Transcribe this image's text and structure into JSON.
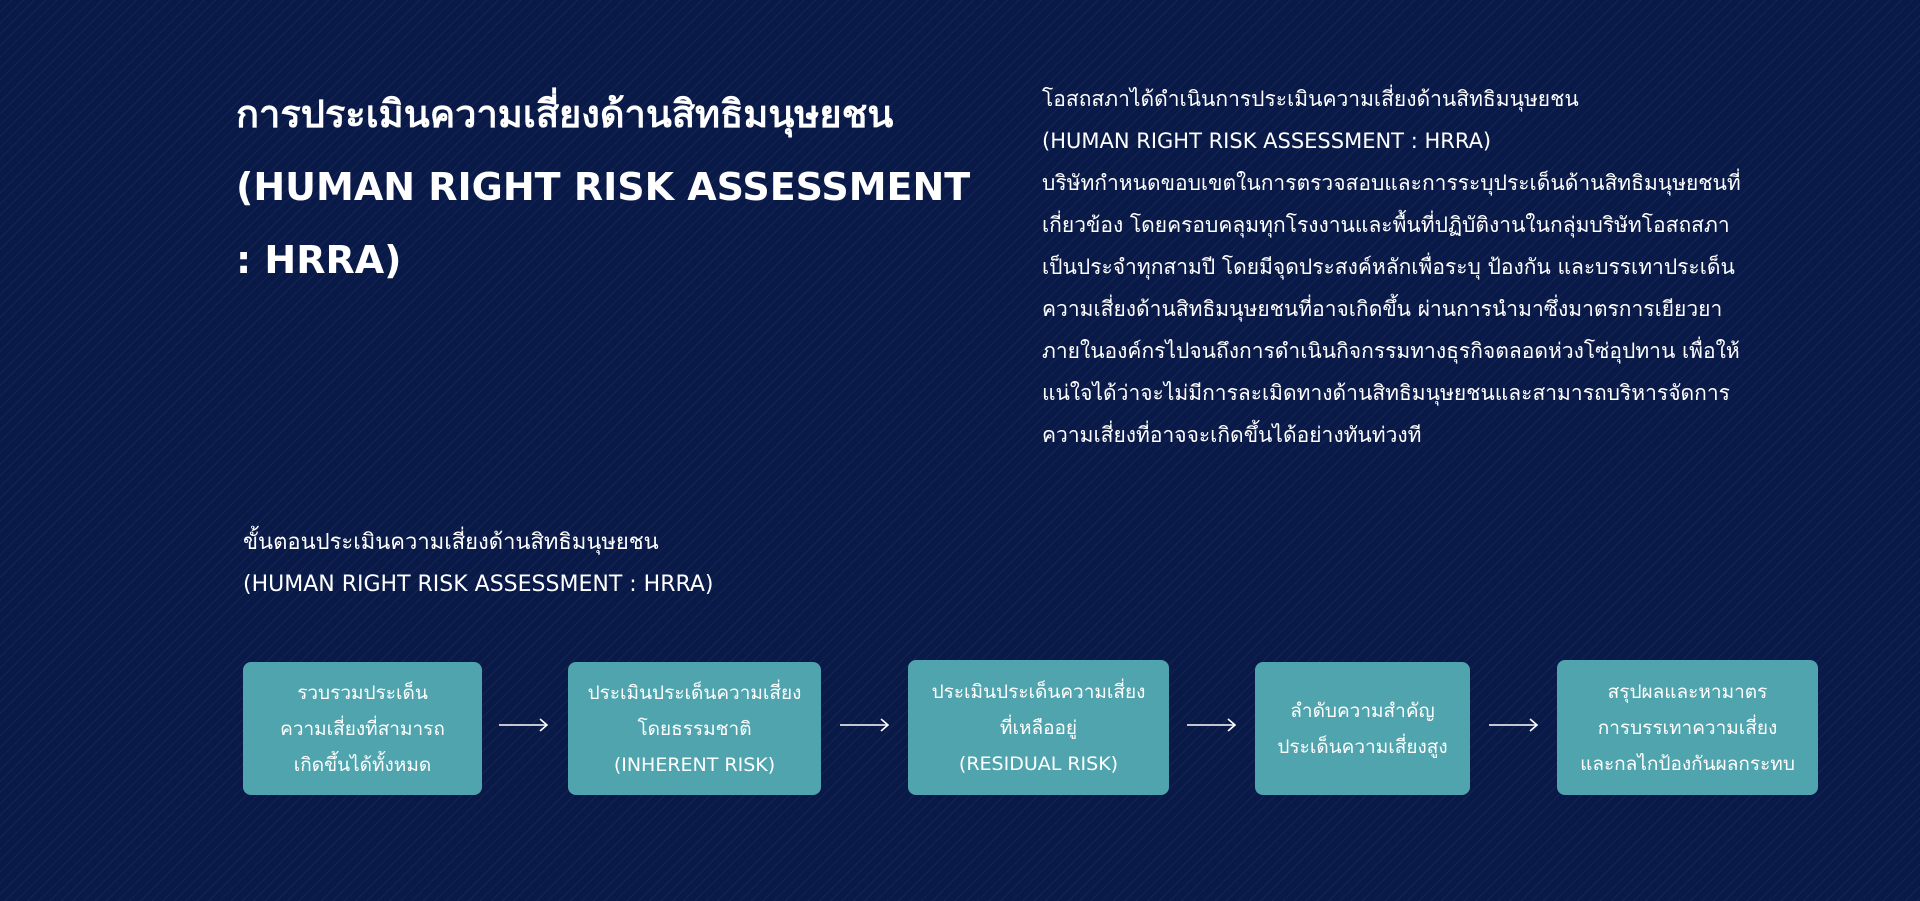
{
  "title": {
    "lines": [
      "การประเมินความเสี่ยงด้านสิทธิมนุษยชน",
      "(HUMAN RIGHT RISK ASSESSMENT",
      ": HRRA)"
    ]
  },
  "intro": {
    "lines": [
      "โอสถสภาได้ดำเนินการประเมินความเสี่ยงด้านสิทธิมนุษยชน",
      "(HUMAN RIGHT RISK ASSESSMENT : HRRA)",
      "บริษัทกำหนดขอบเขตในการตรวจสอบและการระบุประเด็นด้านสิทธิมนุษยชนที่",
      "เกี่ยวข้อง โดยครอบคลุมทุกโรงงานและพื้นที่ปฏิบัติงานในกลุ่มบริษัทโอสถสภา",
      "เป็นประจำทุกสามปี โดยมีจุดประสงค์หลักเพื่อระบุ ป้องกัน และบรรเทาประเด็น",
      "ความเสี่ยงด้านสิทธิมนุษยชนที่อาจเกิดขึ้น ผ่านการนำมาซึ่งมาตรการเยียวยา",
      "ภายในองค์กรไปจนถึงการดำเนินกิจกรรมทางธุรกิจตลอดห่วงโซ่อุปทาน เพื่อให้",
      "แน่ใจได้ว่าจะไม่มีการละเมิดทางด้านสิทธิมนุษยชนและสามารถบริหารจัดการ",
      "ความเสี่ยงที่อาจจะเกิดขึ้นได้อย่างทันท่วงที"
    ]
  },
  "process": {
    "heading": [
      "ขั้นตอนประเมินความเสี่ยงด้านสิทธิมนุษยชน",
      "(HUMAN RIGHT RISK ASSESSMENT : HRRA)"
    ],
    "steps": [
      {
        "lines": [
          "รวบรวมประเด็น",
          "ความเสี่ยงที่สามารถ",
          "เกิดขึ้นได้ทั้งหมด"
        ]
      },
      {
        "lines": [
          "ประเมินประเด็นความเสี่ยง",
          "โดยธรรมชาติ",
          "(INHERENT RISK)"
        ]
      },
      {
        "lines": [
          "ประเมินประเด็นความเสี่ยง",
          "ที่เหลืออยู่",
          "(RESIDUAL RISK)"
        ]
      },
      {
        "lines": [
          "ลำดับความสำคัญ",
          "ประเด็นความเสี่ยงสูง"
        ]
      },
      {
        "lines": [
          "สรุปผลและหามาตร",
          "การบรรเทาความเสี่ยง",
          "และกลไกป้องกันผลกระทบ"
        ]
      }
    ],
    "arrow_icon": "long-right-arrow-icon"
  },
  "colors": {
    "background": "#0a1a48",
    "step_box": "#4fa4ad",
    "text": "#ffffff"
  }
}
